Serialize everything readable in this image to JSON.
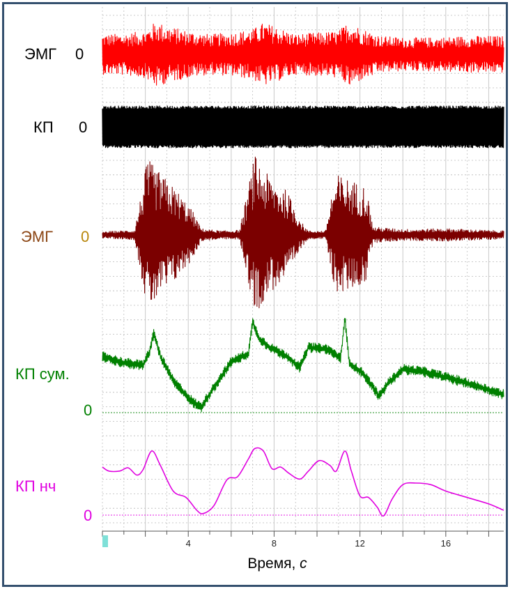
{
  "colors": {
    "frame": "#34506e",
    "grid": "#b8b8b8",
    "axis": "#555555",
    "marker": "#7fe0d8"
  },
  "chart_data": {
    "type": "line",
    "xlabel_main": "Время, ",
    "xlabel_unit": "с",
    "xlim": [
      0,
      18.7
    ],
    "xticks": [
      4,
      8,
      12,
      16
    ],
    "grid": true,
    "series": [
      {
        "name": "ЭМГ",
        "zero_label": "0",
        "color": "#ff0000",
        "kind": "band",
        "envelope_x": [
          0,
          1,
          2,
          2.5,
          3,
          4,
          5,
          6,
          7,
          7.5,
          8,
          9,
          10,
          11,
          11.5,
          12,
          13,
          14,
          15,
          16,
          17,
          18.7
        ],
        "envelope_y": [
          0.6,
          0.62,
          0.7,
          1.0,
          0.85,
          0.7,
          0.6,
          0.65,
          0.75,
          0.95,
          0.85,
          0.6,
          0.65,
          0.7,
          1.0,
          0.8,
          0.55,
          0.5,
          0.5,
          0.52,
          0.55,
          0.55
        ]
      },
      {
        "name": "КП",
        "zero_label": "0",
        "color": "#000000",
        "kind": "band",
        "envelope_x": [
          0,
          18.7
        ],
        "envelope_y": [
          1.0,
          1.0
        ]
      },
      {
        "name": "ЭМГ",
        "zero_label": "0",
        "color": "#7b0000",
        "kind": "burst",
        "envelope_x": [
          0,
          1.5,
          1.8,
          2.1,
          2.6,
          3.5,
          4.2,
          4.6,
          5.5,
          6.4,
          6.8,
          7.1,
          7.7,
          8.6,
          9.3,
          9.6,
          10.4,
          10.7,
          11.0,
          11.5,
          12.3,
          12.6,
          14,
          16,
          18.7
        ],
        "envelope_y": [
          0.04,
          0.06,
          0.5,
          0.95,
          0.8,
          0.55,
          0.3,
          0.08,
          0.05,
          0.06,
          0.6,
          1.0,
          0.75,
          0.55,
          0.15,
          0.05,
          0.05,
          0.55,
          0.75,
          0.7,
          0.6,
          0.1,
          0.07,
          0.08,
          0.05
        ]
      },
      {
        "name": "КП сум.",
        "zero_label": "0",
        "color": "#008000",
        "kind": "noisy",
        "x": [
          0,
          1,
          1.9,
          2.2,
          2.4,
          2.7,
          3.3,
          4.2,
          4.6,
          5.2,
          6.0,
          6.8,
          7.0,
          7.3,
          7.8,
          8.6,
          9.2,
          9.6,
          10.5,
          11.1,
          11.3,
          11.5,
          12.2,
          12.9,
          13.3,
          14.0,
          15.0,
          16.5,
          18.7
        ],
        "y": [
          0.62,
          0.55,
          0.52,
          0.68,
          0.88,
          0.62,
          0.35,
          0.12,
          0.06,
          0.28,
          0.56,
          0.65,
          1.0,
          0.82,
          0.72,
          0.62,
          0.5,
          0.72,
          0.7,
          0.6,
          1.05,
          0.55,
          0.42,
          0.18,
          0.32,
          0.48,
          0.45,
          0.36,
          0.2
        ],
        "noise": 0.06
      },
      {
        "name": "КП нч",
        "zero_label": "0",
        "color": "#e000e0",
        "kind": "smooth",
        "x": [
          0,
          0.3,
          0.8,
          1.2,
          1.6,
          1.9,
          2.3,
          2.7,
          3.3,
          3.9,
          4.4,
          4.7,
          5.2,
          5.8,
          6.3,
          6.8,
          7.1,
          7.5,
          7.9,
          8.3,
          8.7,
          9.2,
          9.6,
          10.1,
          10.6,
          10.9,
          11.3,
          11.6,
          12.0,
          12.4,
          12.8,
          13.1,
          13.5,
          14.0,
          14.6,
          15.3,
          16.0,
          17.0,
          18.0,
          18.7
        ],
        "y": [
          0.6,
          0.55,
          0.55,
          0.59,
          0.5,
          0.57,
          0.8,
          0.62,
          0.3,
          0.22,
          0.06,
          0.02,
          0.12,
          0.44,
          0.48,
          0.7,
          0.83,
          0.8,
          0.58,
          0.6,
          0.52,
          0.45,
          0.55,
          0.68,
          0.62,
          0.55,
          0.8,
          0.55,
          0.24,
          0.22,
          0.1,
          -0.01,
          0.2,
          0.38,
          0.4,
          0.38,
          0.3,
          0.22,
          0.14,
          0.06
        ]
      }
    ]
  }
}
